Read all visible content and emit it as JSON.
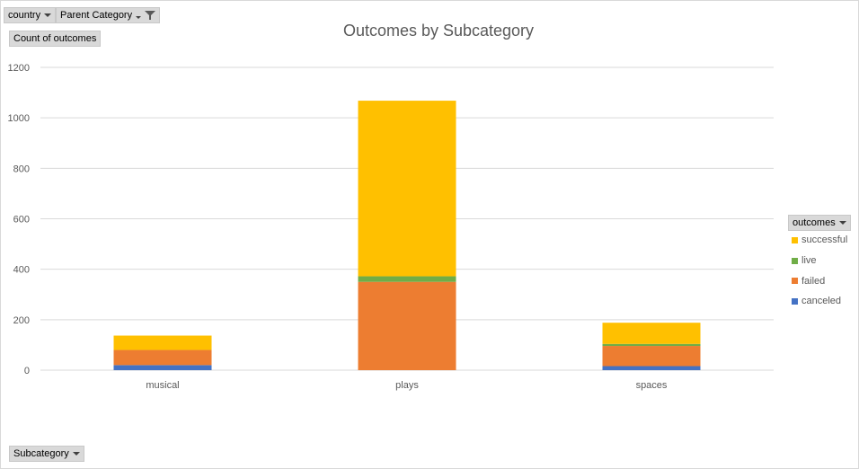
{
  "filters": {
    "country_label": "country",
    "parent_category_label": "Parent Category",
    "values_label": "Count of outcomes",
    "axis_field_label": "Subcategory",
    "legend_field_label": "outcomes"
  },
  "colors": {
    "successful": "#ffc000",
    "live": "#70ad47",
    "failed": "#ed7d31",
    "canceled": "#4472c4",
    "grid": "#d9d9d9"
  },
  "chart_data": {
    "type": "bar",
    "stacked": true,
    "title": "Outcomes by Subcategory",
    "xlabel": "",
    "ylabel": "",
    "ylim": [
      0,
      1200
    ],
    "yticks": [
      0,
      200,
      400,
      600,
      800,
      1000,
      1200
    ],
    "categories": [
      "musical",
      "plays",
      "spaces"
    ],
    "series": [
      {
        "name": "canceled",
        "values": [
          20,
          0,
          16
        ]
      },
      {
        "name": "failed",
        "values": [
          60,
          350,
          80
        ]
      },
      {
        "name": "live",
        "values": [
          0,
          22,
          8
        ]
      },
      {
        "name": "successful",
        "values": [
          57,
          696,
          84
        ]
      }
    ],
    "legend": "right",
    "grid": true
  }
}
